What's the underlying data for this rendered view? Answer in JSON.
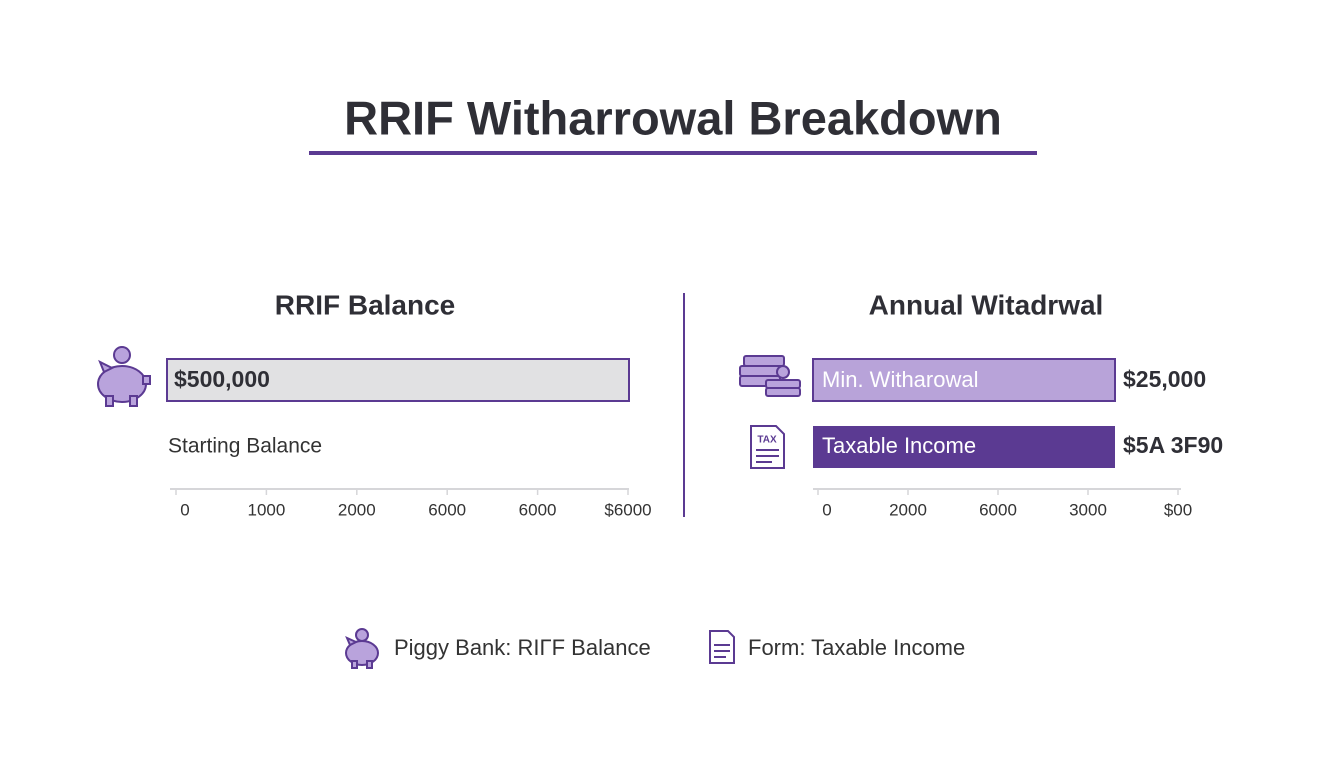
{
  "header": {
    "title": "RRIF Witharrowal Breakdown"
  },
  "left_panel": {
    "heading": "RRIF Balance",
    "bar_label": "$500,000",
    "caption": "Starting Balance",
    "axis_ticks": [
      "0",
      "1000",
      "2000",
      "6000",
      "6000",
      "$6000"
    ]
  },
  "right_panel": {
    "heading": "Annual Witadrwal",
    "bars": [
      {
        "label": "Min. Witharowal",
        "value": "$25,000"
      },
      {
        "label": "Taxable Income",
        "value": "$5A 3F90",
        "icon_text": "TAX"
      }
    ],
    "axis_ticks": [
      "0",
      "2000",
      "6000",
      "3000",
      "$00"
    ]
  },
  "legend": [
    {
      "label": "Piggy Bank: RIΓF Balance"
    },
    {
      "label": "Form: Taxable Income"
    }
  ]
}
